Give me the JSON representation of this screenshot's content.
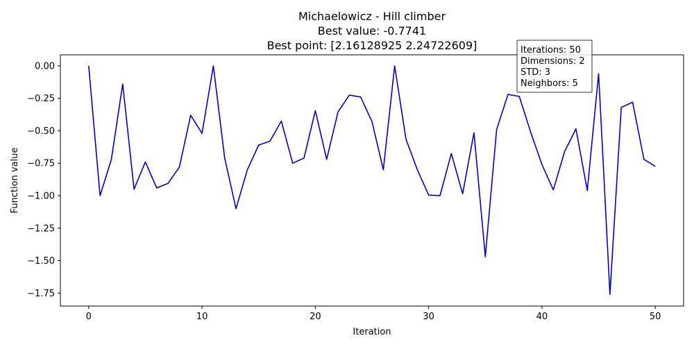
{
  "chart_data": {
    "type": "line",
    "title_lines": [
      "Michaelowicz - Hill climber",
      "Best value: -0.7741",
      "Best point: [2.16128925 2.24722609]"
    ],
    "xlabel": "Iteration",
    "ylabel": "Function value",
    "xlim": [
      -2.5,
      52.5
    ],
    "ylim": [
      -1.85,
      0.085
    ],
    "x_ticks": [
      0,
      10,
      20,
      30,
      40,
      50
    ],
    "x_tick_labels": [
      "0",
      "10",
      "20",
      "30",
      "40",
      "50"
    ],
    "y_ticks": [
      0.0,
      -0.25,
      -0.5,
      -0.75,
      -1.0,
      -1.25,
      -1.5,
      -1.75
    ],
    "y_tick_labels": [
      "0.00",
      "−0.25",
      "−0.50",
      "−0.75",
      "−1.00",
      "−1.25",
      "−1.50",
      "−1.75"
    ],
    "grid": false,
    "series": [
      {
        "color": "#0000cc",
        "x": [
          0,
          1,
          2,
          3,
          4,
          5,
          6,
          7,
          8,
          9,
          10,
          11,
          12,
          13,
          14,
          15,
          16,
          17,
          18,
          19,
          20,
          21,
          22,
          23,
          24,
          25,
          26,
          27,
          28,
          29,
          30,
          31,
          32,
          33,
          34,
          35,
          36,
          37,
          38,
          39,
          40,
          41,
          42,
          43,
          44,
          45,
          46,
          47,
          48,
          49,
          50
        ],
        "values": [
          0.0,
          -1.0,
          -0.72,
          -0.14,
          -0.95,
          -0.74,
          -0.94,
          -0.905,
          -0.78,
          -0.38,
          -0.52,
          0.0,
          -0.71,
          -1.1,
          -0.8,
          -0.61,
          -0.58,
          -0.425,
          -0.75,
          -0.71,
          -0.345,
          -0.72,
          -0.355,
          -0.225,
          -0.24,
          -0.43,
          -0.8,
          0.0,
          -0.565,
          -0.8,
          -0.995,
          -1.0,
          -0.675,
          -0.985,
          -0.515,
          -1.47,
          -0.49,
          -0.22,
          -0.235,
          -0.51,
          -0.76,
          -0.955,
          -0.66,
          -0.485,
          -0.96,
          -0.06,
          -1.76,
          -0.32,
          -0.28,
          -0.72,
          -0.774
        ]
      }
    ],
    "info_box": [
      "Iterations: 50",
      "Dimensions: 2",
      "STD: 3",
      "Neighbors: 5"
    ]
  }
}
